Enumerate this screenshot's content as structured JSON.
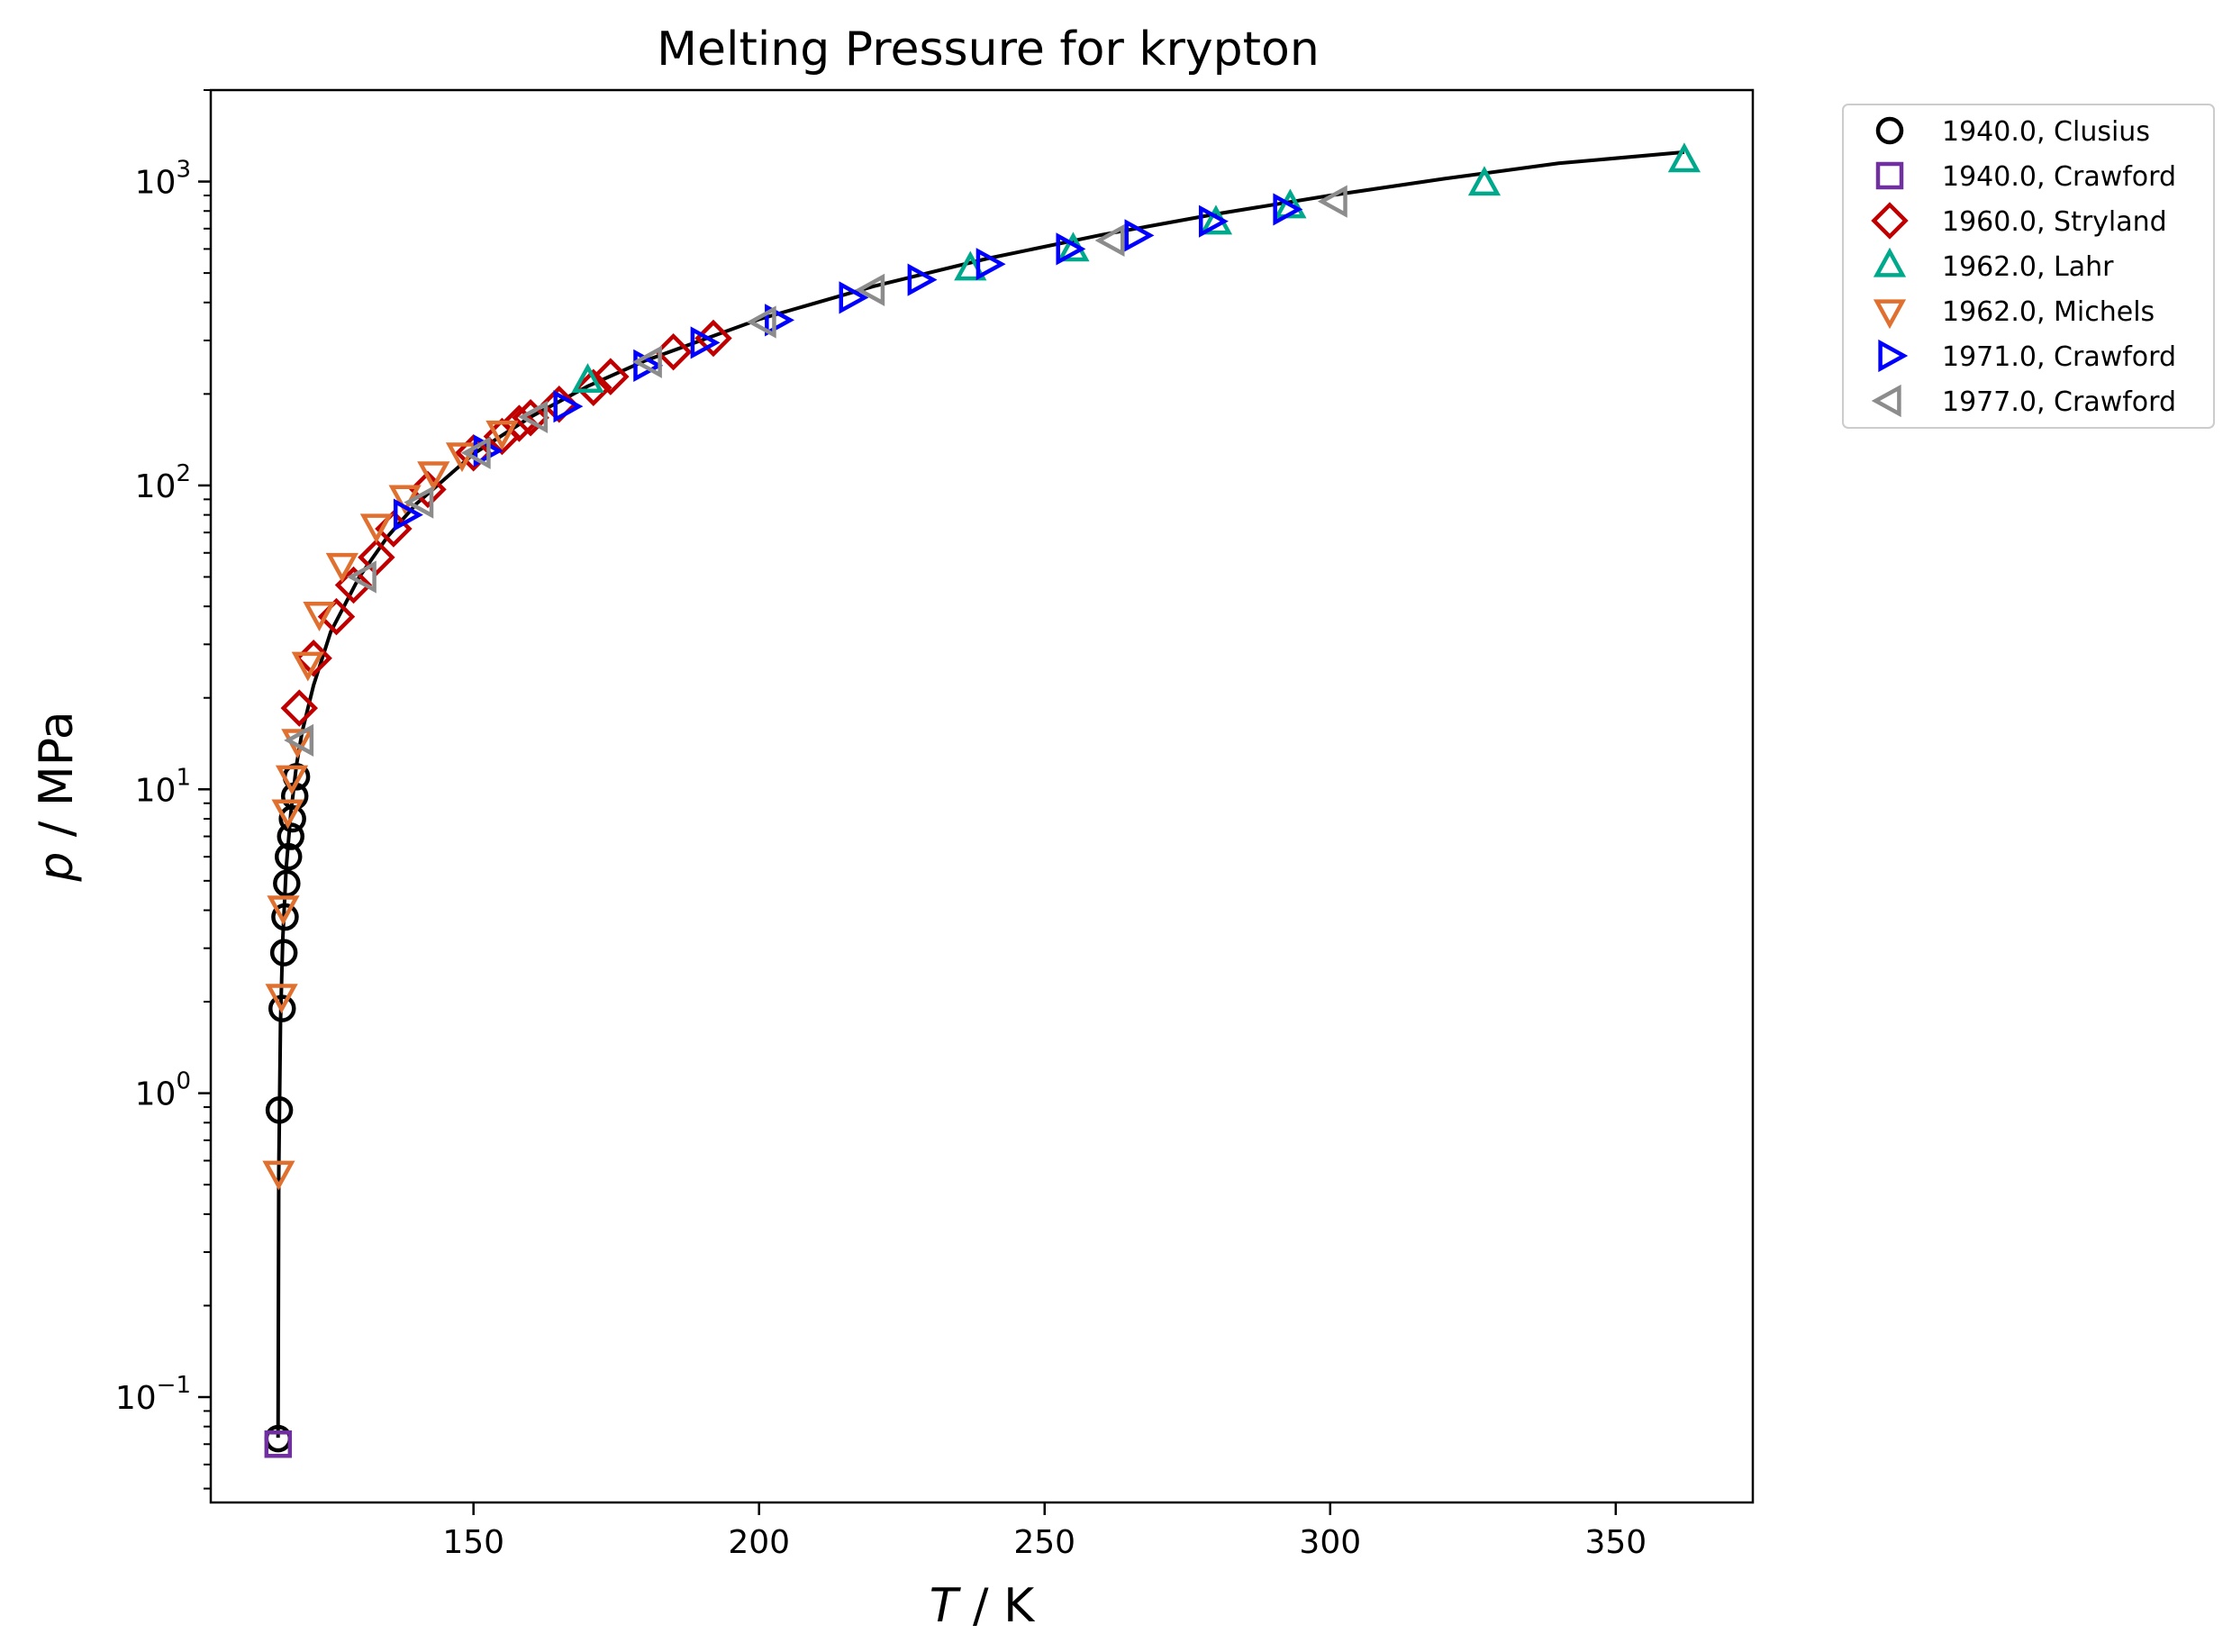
{
  "chart_data": {
    "type": "scatter",
    "title": "Melting Pressure for krypton",
    "xlabel_var": "T",
    "xlabel_unit": " / K",
    "ylabel_var": "p",
    "ylabel_unit": " / MPa",
    "xscale": "linear",
    "yscale": "log",
    "xlim": [
      104,
      374
    ],
    "ylim": [
      0.045,
      2000
    ],
    "xticks": [
      150,
      200,
      250,
      300,
      350
    ],
    "yticks": [
      {
        "value": 0.1,
        "base": "10",
        "exp": "−1"
      },
      {
        "value": 1,
        "base": "10",
        "exp": "0"
      },
      {
        "value": 10,
        "base": "10",
        "exp": "1"
      },
      {
        "value": 100,
        "base": "10",
        "exp": "2"
      },
      {
        "value": 1000,
        "base": "10",
        "exp": "3"
      }
    ],
    "legend_position": "outside-top-right",
    "fit_curve": {
      "name": "model",
      "color": "#000000",
      "x": [
        115.78,
        115.9,
        116.2,
        116.6,
        117.2,
        118,
        119,
        120,
        122,
        125,
        130,
        135,
        140,
        150,
        160,
        170,
        180,
        200,
        220,
        240,
        260,
        280,
        300,
        320,
        340,
        362
      ],
      "y": [
        0.0735,
        0.55,
        1.7,
        3.2,
        5.5,
        8.3,
        12,
        15.5,
        22,
        33,
        50,
        68,
        87,
        127,
        168,
        212,
        257,
        352,
        452,
        558,
        668,
        782,
        900,
        1022,
        1148,
        1250
      ]
    },
    "series": [
      {
        "name": "1940.0, Clusius",
        "marker": "circle",
        "color": "#000000",
        "x": [
          115.8,
          116,
          116.5,
          116.8,
          117,
          117.3,
          117.6,
          118,
          118.3,
          118.7,
          119
        ],
        "y": [
          0.073,
          0.88,
          1.9,
          2.9,
          3.8,
          4.9,
          6,
          7,
          8,
          9.5,
          11
        ]
      },
      {
        "name": "1940.0, Crawford",
        "marker": "square",
        "color": "#7030a0",
        "x": [
          115.8
        ],
        "y": [
          0.07
        ]
      },
      {
        "name": "1960.0, Stryland",
        "marker": "diamond",
        "color": "#c00000",
        "x": [
          119.5,
          122,
          126,
          129,
          133,
          136,
          142,
          150,
          155,
          158,
          160,
          165,
          171,
          174,
          185,
          192
        ],
        "y": [
          18.5,
          27,
          37,
          47,
          58,
          72,
          97,
          128,
          145,
          160,
          167,
          185,
          210,
          228,
          275,
          305
        ]
      },
      {
        "name": "1962.0, Lahr",
        "marker": "triangle-up",
        "color": "#00a88c",
        "x": [
          170,
          237,
          255,
          280,
          293,
          327,
          362
        ],
        "y": [
          220,
          515,
          595,
          730,
          825,
          980,
          1170
        ]
      },
      {
        "name": "1962.0, Michels",
        "marker": "triangle-down",
        "color": "#e07030",
        "x": [
          115.9,
          116.4,
          116.7,
          117.5,
          118.2,
          119.2,
          121,
          123,
          127,
          133,
          138,
          143,
          148,
          155
        ],
        "y": [
          0.55,
          2.1,
          4.1,
          8.5,
          11,
          14.5,
          26,
          38,
          55,
          74,
          92,
          110,
          127,
          150
        ]
      },
      {
        "name": "1971.0, Crawford",
        "marker": "triangle-right",
        "color": "#0000ff",
        "x": [
          138,
          152,
          166,
          180,
          190,
          203,
          216,
          228,
          240,
          254,
          266,
          279,
          292
        ],
        "y": [
          80,
          130,
          182,
          248,
          295,
          350,
          415,
          475,
          535,
          600,
          665,
          740,
          810
        ]
      },
      {
        "name": "1977.0, Crawford",
        "marker": "triangle-left",
        "color": "#8c8c8c",
        "x": [
          120,
          131,
          141,
          151,
          161,
          181,
          201,
          220,
          262,
          301
        ],
        "y": [
          14.5,
          50,
          88,
          128,
          168,
          255,
          345,
          440,
          640,
          860
        ]
      }
    ]
  }
}
